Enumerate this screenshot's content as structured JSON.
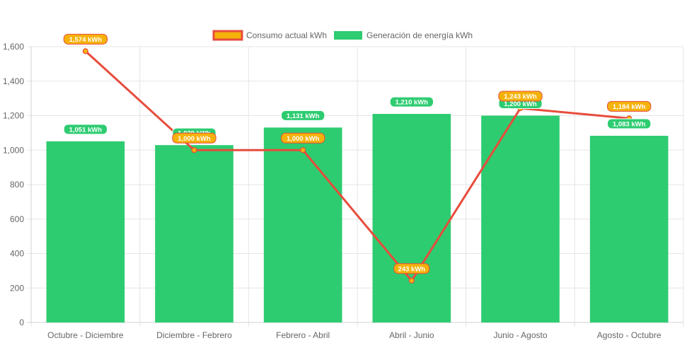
{
  "chart_data": {
    "type": "bar",
    "categories": [
      "Octubre - Diciembre",
      "Diciembre - Febrero",
      "Febrero - Abril",
      "Abril - Junio",
      "Junio - Agosto",
      "Agosto - Octubre"
    ],
    "series": [
      {
        "name": "Consumo actual kWh",
        "type": "line",
        "color": "#e74c3c",
        "label_color": "#f5b20a",
        "values": [
          1574,
          1000,
          1000,
          243,
          1243,
          1184
        ],
        "labels": [
          "1,574 kWh",
          "1,000 kWh",
          "1,000 kWh",
          "243 kWh",
          "1,243 kWh",
          "1,184 kWh"
        ]
      },
      {
        "name": "Generación de energía kWh",
        "type": "bar",
        "color": "#2ecc71",
        "values": [
          1051,
          1029,
          1131,
          1210,
          1200,
          1083
        ],
        "labels": [
          "1,051 kWh",
          "1,029 kWh",
          "1,131 kWh",
          "1,210 kWh",
          "1,200 kWh",
          "1,083 kWh"
        ]
      }
    ],
    "ylim": [
      0,
      1600
    ],
    "yticks": [
      0,
      200,
      400,
      600,
      800,
      1000,
      1200,
      1400,
      1600
    ],
    "ytick_labels": [
      "0",
      "200",
      "400",
      "600",
      "800",
      "1,000",
      "1,200",
      "1,400",
      "1,600"
    ],
    "grid": true,
    "legend_position": "top-center"
  }
}
